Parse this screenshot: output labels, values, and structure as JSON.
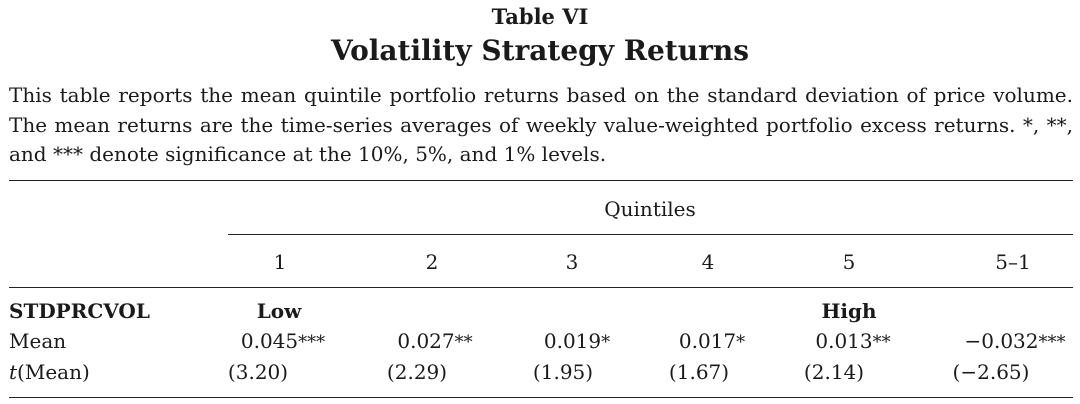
{
  "table_label": "Table VI",
  "title": "Volatility Strategy Returns",
  "caption": "This table reports the mean quintile portfolio returns based on the standard deviation of price volume. The mean returns are the time-series averages of weekly value-weighted portfolio excess returns. *, **, and *** denote significance at the 10%, 5%, and 1% levels.",
  "group_header": "Quintiles",
  "columns": [
    "1",
    "2",
    "3",
    "4",
    "5",
    "5–1"
  ],
  "row_header": "STDPRCVOL",
  "low_label": "Low",
  "high_label": "High",
  "mean_label": "Mean",
  "t_label_italic": "t",
  "t_label_rest": "(Mean)",
  "means": [
    "0.045",
    "0.027",
    "0.019",
    "0.017",
    "0.013",
    "−0.032"
  ],
  "mean_stars": [
    "***",
    "**",
    "*",
    "*",
    "**",
    "***"
  ],
  "tstats": [
    "(3.20)",
    "(2.29)",
    "(1.95)",
    "(1.67)",
    "(2.14)",
    "(−2.65)"
  ]
}
